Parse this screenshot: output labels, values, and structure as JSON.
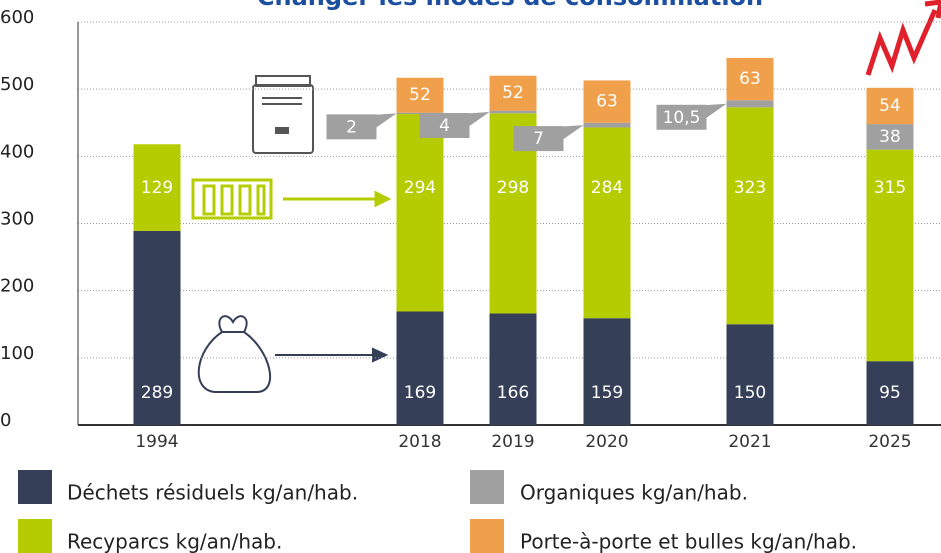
{
  "chart_data": {
    "type": "stacked_bar",
    "title": "Changer les modes de consommation",
    "categories": [
      "1994",
      "2018",
      "2019",
      "2020",
      "2021",
      "2025"
    ],
    "series": [
      {
        "name": "Déchets résiduels kg/an/hab.",
        "color": "#353f58",
        "values": [
          289,
          169,
          166,
          159,
          150,
          95
        ]
      },
      {
        "name": "Recyparcs kg/an/hab.",
        "color": "#b5cc00",
        "values": [
          129,
          294,
          298,
          284,
          323,
          315
        ]
      },
      {
        "name": "Organiques kg/an/hab.",
        "color": "#a0a0a0",
        "values": [
          null,
          2,
          4,
          7,
          10.5,
          38
        ],
        "value_labels": [
          null,
          "2",
          "4",
          "7",
          "10,5",
          "38"
        ]
      },
      {
        "name": "Porte-à-porte et bulles kg/an/hab.",
        "color": "#f0a04b",
        "values": [
          null,
          52,
          52,
          63,
          63,
          54
        ]
      }
    ],
    "ylim": [
      0,
      600
    ],
    "yticks": [
      0,
      100,
      200,
      300,
      400,
      500,
      600
    ],
    "grid": true
  }
}
